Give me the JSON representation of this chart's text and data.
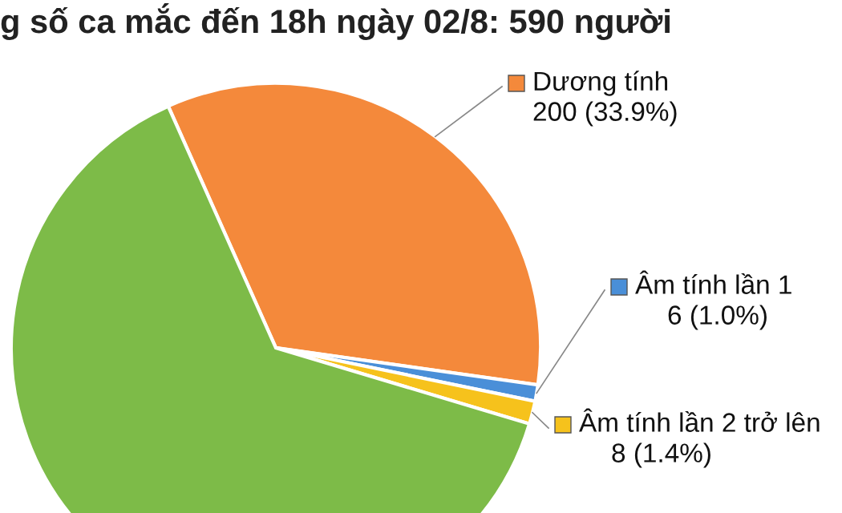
{
  "chart_data": {
    "type": "pie",
    "title": "g số ca mắc đến 18h ngày 02/8: 590 người",
    "categories": [
      "Dương tính",
      "Âm tính lần 1",
      "Âm tính lần 2 trở lên",
      null
    ],
    "values": [
      33.9,
      1.0,
      1.4,
      63.7
    ],
    "value_labels": [
      "200 (33.9%)",
      "6 (1.0%)",
      "8 (1.4%)",
      null
    ],
    "colors": [
      "#f4893b",
      "#4a8fd8",
      "#f6c21c",
      "#7dbb48"
    ],
    "legend": "right"
  }
}
